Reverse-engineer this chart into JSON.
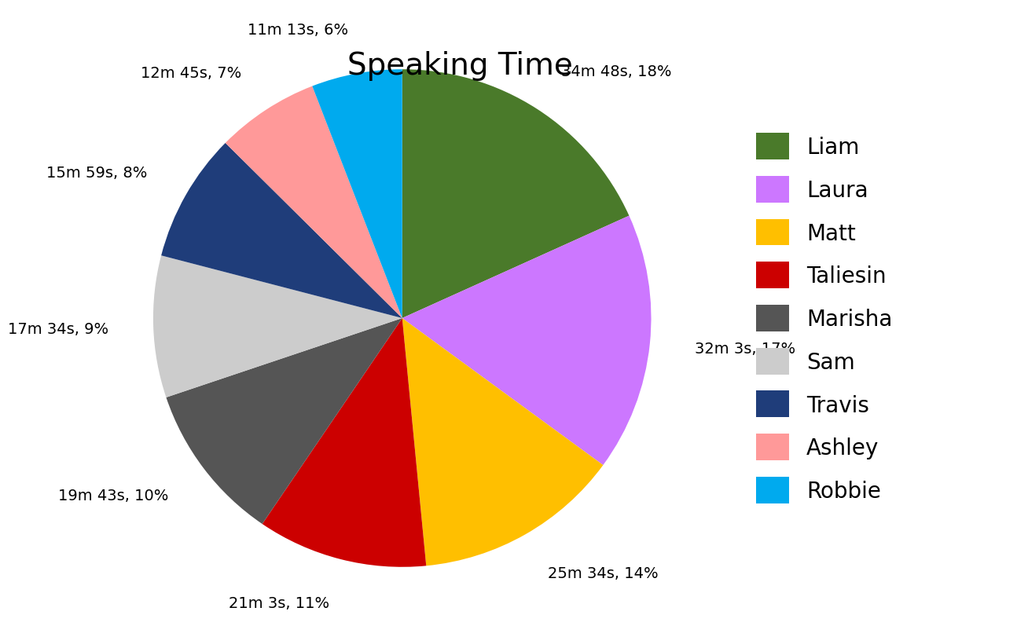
{
  "title": "Speaking Time",
  "players": [
    "Liam",
    "Laura",
    "Matt",
    "Taliesin",
    "Marisha",
    "Sam",
    "Travis",
    "Ashley",
    "Robbie"
  ],
  "labels": [
    "34m 48s, 18%",
    "32m 3s, 17%",
    "25m 34s, 14%",
    "21m 3s, 11%",
    "19m 43s, 10%",
    "17m 34s, 9%",
    "15m 59s, 8%",
    "12m 45s, 7%",
    "11m 13s, 6%"
  ],
  "values": [
    2088,
    1923,
    1534,
    1263,
    1183,
    1054,
    959,
    765,
    673
  ],
  "colors": [
    "#4a7a2a",
    "#cc77ff",
    "#ffbf00",
    "#cc0000",
    "#555555",
    "#cccccc",
    "#1f3d7a",
    "#ff9999",
    "#00aaee"
  ],
  "title_fontsize": 28,
  "label_fontsize": 14,
  "legend_fontsize": 20,
  "legend_marker_size": 16
}
